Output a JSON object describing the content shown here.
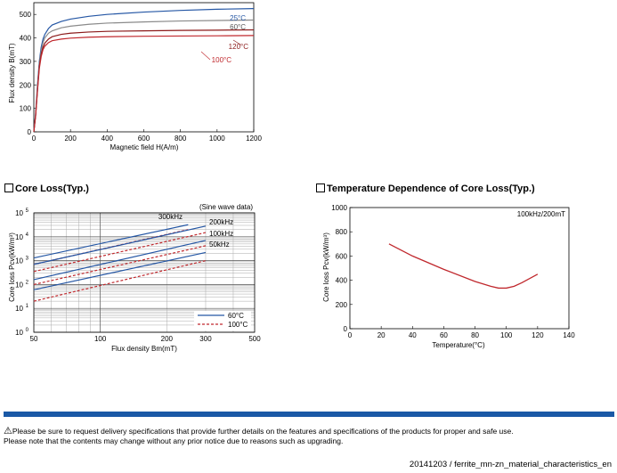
{
  "colors": {
    "red": "#c0282d",
    "blue": "#2456a4",
    "gray": "#8a8a8a",
    "darkred": "#8b1a1a",
    "accent_bar": "#1a59a6"
  },
  "chart_data": [
    {
      "type": "line",
      "ylabel": "Flux density B(mT)",
      "xlabel": "Magnetic field H(A/m)",
      "xlim": [
        0,
        1200
      ],
      "ylim": [
        0,
        550
      ],
      "xticks": [
        "0",
        "200",
        "400",
        "600",
        "800",
        "1000",
        "1200"
      ],
      "yticks": [
        "0",
        "100",
        "200",
        "300",
        "400",
        "500"
      ],
      "series": [
        {
          "name": "25°C",
          "color_key": "blue",
          "x": [
            0,
            10,
            20,
            30,
            40,
            50,
            60,
            80,
            100,
            150,
            200,
            300,
            400,
            600,
            800,
            1000,
            1200
          ],
          "y": [
            0,
            80,
            200,
            300,
            360,
            395,
            415,
            440,
            455,
            470,
            480,
            492,
            500,
            510,
            517,
            522,
            525
          ]
        },
        {
          "name": "60°C",
          "color_key": "gray",
          "x": [
            0,
            10,
            20,
            30,
            40,
            50,
            60,
            80,
            100,
            150,
            200,
            300,
            400,
            600,
            800,
            1000,
            1200
          ],
          "y": [
            0,
            75,
            190,
            290,
            345,
            380,
            400,
            420,
            430,
            443,
            450,
            458,
            463,
            468,
            472,
            474,
            476
          ]
        },
        {
          "name": "120°C",
          "color_key": "darkred",
          "x": [
            0,
            10,
            20,
            30,
            40,
            50,
            60,
            80,
            100,
            150,
            200,
            300,
            400,
            600,
            800,
            1000,
            1200
          ],
          "y": [
            0,
            70,
            180,
            280,
            330,
            360,
            378,
            395,
            405,
            415,
            420,
            425,
            428,
            430,
            432,
            433,
            434
          ]
        },
        {
          "name": "100°C",
          "color_key": "red",
          "x": [
            0,
            10,
            20,
            30,
            40,
            50,
            60,
            80,
            100,
            150,
            200,
            300,
            400,
            600,
            800,
            1000,
            1200
          ],
          "y": [
            0,
            70,
            175,
            270,
            320,
            350,
            365,
            380,
            388,
            395,
            399,
            403,
            405,
            407,
            408,
            409,
            410
          ]
        }
      ]
    },
    {
      "type": "line",
      "title": "Core Loss(Typ.)",
      "xlabel": "Flux density Bm(mT)",
      "ylabel": "Core loss Pcv(kW/m³)",
      "annotation": "(Sine wave data)",
      "x_scale": "log",
      "y_scale": "log",
      "xlim": [
        50,
        500
      ],
      "ylim": [
        1,
        100000
      ],
      "xticks": [
        "50",
        "100",
        "200",
        "300",
        "500"
      ],
      "yticks": [
        {
          "base": "10",
          "exp": "0"
        },
        {
          "base": "10",
          "exp": "1"
        },
        {
          "base": "10",
          "exp": "2"
        },
        {
          "base": "10",
          "exp": "3"
        },
        {
          "base": "10",
          "exp": "4"
        },
        {
          "base": "10",
          "exp": "5"
        }
      ],
      "legend": [
        {
          "name": "60°C",
          "color_key": "blue",
          "dash": "solid"
        },
        {
          "name": "100°C",
          "color_key": "red",
          "dash": "dashed"
        }
      ],
      "freq_labels": [
        "300kHz",
        "200kHz",
        "100kHz",
        "50kHz"
      ],
      "series": [
        {
          "freq": "300kHz",
          "temp": "60°C",
          "x": [
            50,
            250
          ],
          "y": [
            1300,
            32000
          ]
        },
        {
          "freq": "300kHz",
          "temp": "100°C",
          "x": [
            50,
            250
          ],
          "y": [
            700,
            20000
          ]
        },
        {
          "freq": "200kHz",
          "temp": "60°C",
          "x": [
            50,
            300
          ],
          "y": [
            700,
            28000
          ]
        },
        {
          "freq": "200kHz",
          "temp": "100°C",
          "x": [
            50,
            300
          ],
          "y": [
            350,
            15000
          ]
        },
        {
          "freq": "100kHz",
          "temp": "60°C",
          "x": [
            50,
            300
          ],
          "y": [
            160,
            7000
          ]
        },
        {
          "freq": "100kHz",
          "temp": "100°C",
          "x": [
            50,
            300
          ],
          "y": [
            100,
            4200
          ]
        },
        {
          "freq": "50kHz",
          "temp": "60°C",
          "x": [
            50,
            300
          ],
          "y": [
            60,
            2200
          ]
        },
        {
          "freq": "50kHz",
          "temp": "100°C",
          "x": [
            50,
            300
          ],
          "y": [
            20,
            1000
          ]
        }
      ]
    },
    {
      "type": "line",
      "title": "Temperature Dependence of Core Loss(Typ.)",
      "xlabel": "Temperature(°C)",
      "ylabel": "Core loss Pcv(kW/m³)",
      "annotation": "100kHz/200mT",
      "xlim": [
        0,
        140
      ],
      "ylim": [
        0,
        1000
      ],
      "xticks": [
        "0",
        "20",
        "40",
        "60",
        "80",
        "100",
        "120",
        "140"
      ],
      "yticks": [
        "0",
        "200",
        "400",
        "600",
        "800",
        "1000"
      ],
      "series": [
        {
          "color_key": "red",
          "x": [
            25,
            40,
            60,
            80,
            90,
            95,
            100,
            105,
            110,
            120
          ],
          "y": [
            700,
            600,
            490,
            390,
            350,
            335,
            335,
            350,
            380,
            450
          ]
        }
      ]
    }
  ],
  "notice": {
    "warning_symbol": "⚠",
    "line1": "Please be sure to request delivery specifications that provide further details on the features and specifications of the products for proper and safe use.",
    "line2": "Please note that the contents may change without any prior notice due to reasons such as upgrading."
  },
  "footer": "20141203 / ferrite_mn-zn_material_characteristics_en"
}
